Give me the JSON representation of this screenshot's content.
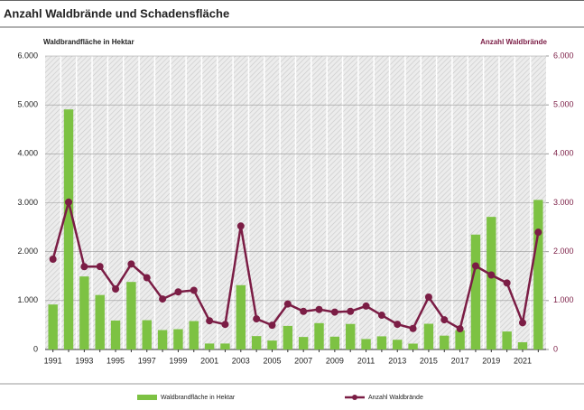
{
  "chart_data": {
    "type": "bar_line",
    "title": "Anzahl Waldbrände und Schadensfläche",
    "ylabel": "Waldbrandfläche in Hektar",
    "y2label": "Anzahl Waldbrände",
    "categories": [
      "1991",
      null,
      "1993",
      null,
      "1995",
      null,
      "1997",
      null,
      "1999",
      null,
      "2001",
      null,
      "2003",
      null,
      "2005",
      null,
      "2007",
      null,
      "2009",
      null,
      "2011",
      null,
      "2013",
      null,
      "2015",
      null,
      "2017",
      null,
      "2019",
      null,
      "2021",
      null
    ],
    "series": [
      {
        "name": "Waldbrandfläche in Hektar",
        "type": "bar",
        "color": "#7dc243",
        "values": [
          920,
          4908,
          1493,
          1114,
          592,
          1381,
          599,
          397,
          415,
          581,
          122,
          122,
          1315,
          274,
          183,
          482,
          256,
          539,
          262,
          522,
          214,
          269,
          199,
          120,
          526,
          283,
          395,
          2349,
          2711,
          368,
          148,
          3058
        ]
      },
      {
        "name": "Anzahl Waldbrände",
        "type": "line",
        "axis": "y2",
        "color": "#7b1d45",
        "values": [
          1846,
          3012,
          1694,
          1696,
          1237,
          1748,
          1467,
          1032,
          1178,
          1210,
          587,
          513,
          2524,
          626,
          496,
          930,
          779,
          818,
          765,
          780,
          888,
          701,
          515,
          429,
          1071,
          608,
          424,
          1708,
          1523,
          1360,
          548,
          2397
        ]
      }
    ],
    "ylim": [
      0,
      6000
    ],
    "yticks": [
      {
        "value": 0,
        "label": "0"
      },
      {
        "value": 1000,
        "label": "1.000"
      },
      {
        "value": 2000,
        "label": "2.000"
      },
      {
        "value": 3000,
        "label": "3.000"
      },
      {
        "value": 4000,
        "label": "4.000"
      },
      {
        "value": 5000,
        "label": "5.000"
      },
      {
        "value": 6000,
        "label": "6.000"
      }
    ],
    "y2lim": [
      0,
      6000
    ],
    "y2ticks": [
      {
        "value": 0,
        "label": "0"
      },
      {
        "value": 1000,
        "label": "1.000"
      },
      {
        "value": 2000,
        "label": "2.000"
      },
      {
        "value": 3000,
        "label": "3.000"
      },
      {
        "value": 4000,
        "label": "4.000"
      },
      {
        "value": 5000,
        "label": "5.000"
      },
      {
        "value": 6000,
        "label": "6.000"
      }
    ],
    "grid": true,
    "legend": "bottom"
  }
}
